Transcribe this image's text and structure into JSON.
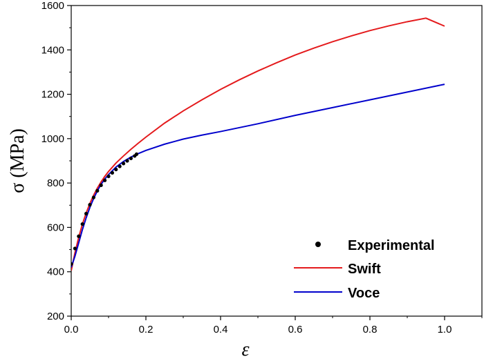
{
  "chart_data": {
    "type": "line",
    "xlabel": "ε",
    "ylabel": "σ (MPa)",
    "xlim": [
      0.0,
      1.1
    ],
    "ylim": [
      200,
      1600
    ],
    "x_ticks": [
      "0.0",
      "0.2",
      "0.4",
      "0.6",
      "0.8",
      "1.0"
    ],
    "y_ticks": [
      "200",
      "400",
      "600",
      "800",
      "1000",
      "1200",
      "1400",
      "1600"
    ],
    "grid": false,
    "legend_position": "bottom-right",
    "series": [
      {
        "name": "Experimental",
        "kind": "scatter",
        "color": "#000000",
        "x": [
          0.0,
          0.01,
          0.02,
          0.03,
          0.04,
          0.05,
          0.06,
          0.07,
          0.08,
          0.09,
          0.1,
          0.11,
          0.12,
          0.13,
          0.14,
          0.15,
          0.16,
          0.17,
          0.175
        ],
        "y": [
          435,
          505,
          560,
          615,
          662,
          702,
          735,
          765,
          790,
          812,
          830,
          846,
          861,
          875,
          888,
          900,
          911,
          922,
          930
        ]
      },
      {
        "name": "Swift",
        "kind": "line",
        "color": "#e41a1c",
        "x": [
          0.0,
          0.01,
          0.02,
          0.03,
          0.04,
          0.05,
          0.06,
          0.07,
          0.08,
          0.09,
          0.1,
          0.12,
          0.14,
          0.16,
          0.18,
          0.2,
          0.25,
          0.3,
          0.35,
          0.4,
          0.45,
          0.5,
          0.55,
          0.6,
          0.65,
          0.7,
          0.75,
          0.8,
          0.85,
          0.9,
          0.95,
          1.0
        ],
        "y": [
          405,
          485,
          555,
          615,
          665,
          708,
          745,
          777,
          805,
          830,
          852,
          890,
          922,
          952,
          980,
          1007,
          1070,
          1125,
          1175,
          1222,
          1265,
          1305,
          1342,
          1377,
          1408,
          1437,
          1463,
          1487,
          1508,
          1527,
          1543,
          1507
        ]
      },
      {
        "name": "Voce",
        "kind": "line",
        "color": "#0000cc",
        "x": [
          0.0,
          0.01,
          0.02,
          0.03,
          0.04,
          0.05,
          0.06,
          0.07,
          0.08,
          0.09,
          0.1,
          0.12,
          0.14,
          0.16,
          0.18,
          0.2,
          0.25,
          0.3,
          0.35,
          0.4,
          0.5,
          0.6,
          0.7,
          0.8,
          0.9,
          1.0
        ],
        "y": [
          420,
          470,
          530,
          590,
          643,
          690,
          730,
          765,
          794,
          818,
          838,
          872,
          897,
          917,
          933,
          947,
          975,
          998,
          1016,
          1032,
          1067,
          1105,
          1140,
          1175,
          1210,
          1245
        ]
      }
    ]
  }
}
